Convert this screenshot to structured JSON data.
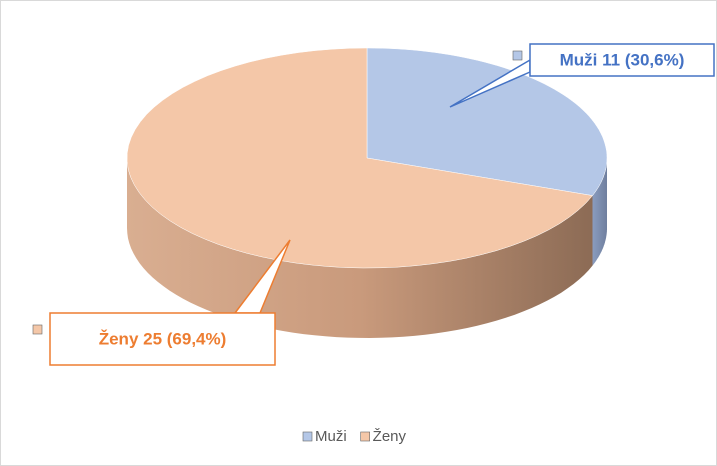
{
  "chart_data": {
    "type": "pie",
    "categories": [
      "Muži",
      "Ženy"
    ],
    "values": [
      11,
      25
    ],
    "value_labels": [
      "Muži  11 (30,6%)",
      "Ženy 25 (69,4%)"
    ],
    "colors": [
      "#b4c7e7",
      "#f4c7a8"
    ],
    "label_colors": [
      "#4472c4",
      "#ed7d31"
    ],
    "legend": "bottom"
  }
}
